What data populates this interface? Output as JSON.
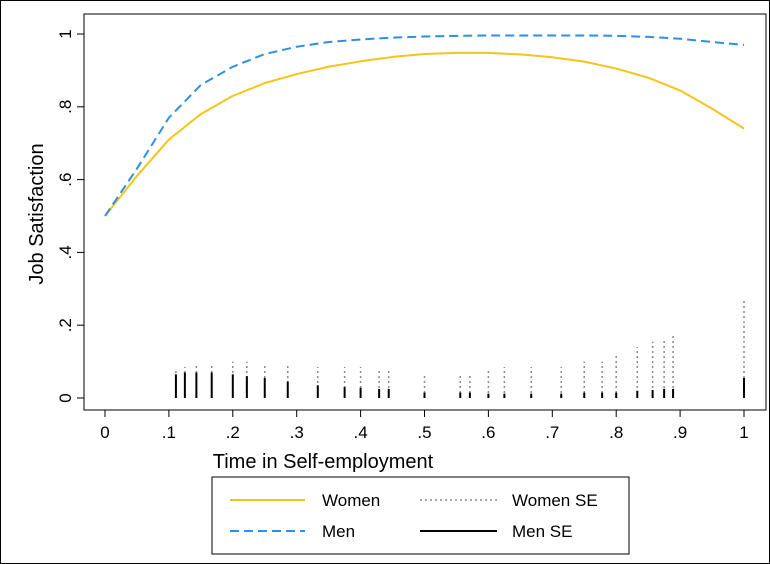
{
  "chart_data": {
    "type": "line",
    "title": "",
    "xlabel": "Time in Self-employment",
    "ylabel": "Job Satisfaction",
    "xlim": [
      0,
      1
    ],
    "ylim": [
      0,
      1
    ],
    "x_ticks": [
      {
        "value": 0,
        "label": "0"
      },
      {
        "value": 0.1,
        "label": ".1"
      },
      {
        "value": 0.2,
        "label": ".2"
      },
      {
        "value": 0.3,
        "label": ".3"
      },
      {
        "value": 0.4,
        "label": ".4"
      },
      {
        "value": 0.5,
        "label": ".5"
      },
      {
        "value": 0.6,
        "label": ".6"
      },
      {
        "value": 0.7,
        "label": ".7"
      },
      {
        "value": 0.8,
        "label": ".8"
      },
      {
        "value": 0.9,
        "label": ".9"
      },
      {
        "value": 1,
        "label": "1"
      }
    ],
    "y_ticks": [
      {
        "value": 0,
        "label": "0"
      },
      {
        "value": 0.2,
        "label": ".2"
      },
      {
        "value": 0.4,
        "label": ".4"
      },
      {
        "value": 0.6,
        "label": ".6"
      },
      {
        "value": 0.8,
        "label": ".8"
      },
      {
        "value": 1,
        "label": "1"
      }
    ],
    "grid": false,
    "legend_position": "bottom",
    "series": [
      {
        "name": "Women",
        "style": "solid",
        "color": "#f5c518",
        "x": [
          0,
          0.05,
          0.1,
          0.15,
          0.2,
          0.25,
          0.3,
          0.35,
          0.4,
          0.45,
          0.5,
          0.55,
          0.6,
          0.65,
          0.7,
          0.75,
          0.8,
          0.85,
          0.9,
          0.95,
          1.0
        ],
        "y": [
          0.5,
          0.61,
          0.71,
          0.78,
          0.83,
          0.865,
          0.89,
          0.91,
          0.925,
          0.937,
          0.945,
          0.948,
          0.948,
          0.944,
          0.936,
          0.924,
          0.905,
          0.88,
          0.845,
          0.795,
          0.74
        ]
      },
      {
        "name": "Men",
        "style": "dashed",
        "color": "#2e8fe6",
        "x": [
          0,
          0.05,
          0.1,
          0.15,
          0.2,
          0.25,
          0.3,
          0.35,
          0.4,
          0.45,
          0.5,
          0.55,
          0.6,
          0.65,
          0.7,
          0.75,
          0.8,
          0.85,
          0.9,
          0.95,
          1.0
        ],
        "y": [
          0.5,
          0.63,
          0.77,
          0.86,
          0.91,
          0.945,
          0.965,
          0.978,
          0.985,
          0.99,
          0.993,
          0.995,
          0.996,
          0.996,
          0.996,
          0.996,
          0.995,
          0.992,
          0.987,
          0.978,
          0.97
        ]
      }
    ],
    "se_series": [
      {
        "name": "Women SE",
        "style": "dotted",
        "color": "#8a8a8a",
        "x": [
          0.111,
          0.125,
          0.143,
          0.167,
          0.2,
          0.222,
          0.25,
          0.286,
          0.333,
          0.375,
          0.4,
          0.429,
          0.444,
          0.5,
          0.556,
          0.571,
          0.6,
          0.625,
          0.667,
          0.714,
          0.75,
          0.778,
          0.8,
          0.833,
          0.857,
          0.875,
          0.889,
          1.0
        ],
        "y": [
          0.08,
          0.085,
          0.09,
          0.095,
          0.1,
          0.1,
          0.095,
          0.088,
          0.085,
          0.085,
          0.085,
          0.08,
          0.08,
          0.065,
          0.065,
          0.065,
          0.08,
          0.085,
          0.085,
          0.085,
          0.1,
          0.1,
          0.12,
          0.14,
          0.155,
          0.165,
          0.175,
          0.27
        ]
      },
      {
        "name": "Men SE",
        "style": "solid",
        "color": "#000000",
        "x": [
          0.111,
          0.125,
          0.143,
          0.167,
          0.2,
          0.222,
          0.25,
          0.286,
          0.333,
          0.375,
          0.4,
          0.429,
          0.444,
          0.5,
          0.556,
          0.571,
          0.6,
          0.625,
          0.667,
          0.714,
          0.75,
          0.778,
          0.8,
          0.833,
          0.857,
          0.875,
          0.889,
          1.0
        ],
        "y": [
          0.065,
          0.07,
          0.07,
          0.07,
          0.065,
          0.06,
          0.055,
          0.045,
          0.035,
          0.03,
          0.028,
          0.025,
          0.025,
          0.015,
          0.015,
          0.015,
          0.012,
          0.012,
          0.012,
          0.012,
          0.015,
          0.015,
          0.015,
          0.02,
          0.022,
          0.025,
          0.025,
          0.055
        ]
      }
    ],
    "legend": [
      {
        "label": "Women",
        "style": "solid",
        "color": "#f5c518"
      },
      {
        "label": "Women SE",
        "style": "dotted",
        "color": "#8a8a8a"
      },
      {
        "label": "Men",
        "style": "dashed",
        "color": "#2e8fe6"
      },
      {
        "label": "Men SE",
        "style": "solid",
        "color": "#000000"
      }
    ]
  }
}
